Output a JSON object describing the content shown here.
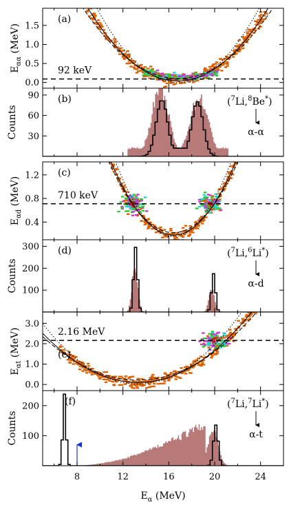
{
  "colors": {
    "hist_fill": "#a85c5c",
    "hist_line": "#000000",
    "arrow_blue": "#1a33d6",
    "scatter_orange": "#d9640b",
    "scatter_green": "#2fc92f",
    "scatter_cyan": "#2ad4c8",
    "scatter_red": "#c8171d",
    "scatter_magenta": "#c93bd0"
  },
  "x_axis": {
    "label_main": "E",
    "label_sub": "α",
    "label_unit": " (MeV)",
    "ticks": [
      "8",
      "12",
      "16",
      "20",
      "24"
    ],
    "range": [
      5,
      26
    ]
  },
  "chart_data": [
    {
      "type": "scatter",
      "panel": "(a)",
      "ylabel_main": "E",
      "ylabel_sub": "αα",
      "ylabel_unit": " (MeV)",
      "ylim": [
        -0.15,
        1.95
      ],
      "yticks": [
        "0.0",
        "0.5",
        "1.0",
        "1.5"
      ],
      "threshold": {
        "value": 0.092,
        "label": "92 keV"
      },
      "curve": {
        "vertex_x": 16.8,
        "vertex_y": 0.04,
        "coef": 0.031
      },
      "cluster": {
        "x_range": [
          13.8,
          20.2
        ],
        "y_center": 0.14
      }
    },
    {
      "type": "bar",
      "panel": "(b)",
      "ylabel": "Counts",
      "ylim": [
        0,
        100
      ],
      "yticks": [
        "30",
        "60",
        "90"
      ],
      "reaction_lead": "(",
      "reaction_sup1": "7",
      "reaction_mid": "Li,",
      "reaction_sup2": "8",
      "reaction_mid2": "Be",
      "reaction_star": "*",
      "reaction_close": ")",
      "decay": "α-α",
      "filled_peaks": [
        {
          "center": 15.2,
          "height": 98,
          "width": 0.75
        },
        {
          "center": 18.6,
          "height": 86,
          "width": 0.8
        }
      ],
      "filled_base": {
        "range": [
          12.3,
          21.2
        ],
        "height": 12
      },
      "line_peaks": [
        {
          "center": 15.3,
          "height": 83,
          "width": 0.5
        },
        {
          "center": 18.4,
          "height": 80,
          "width": 0.5
        }
      ]
    },
    {
      "type": "scatter",
      "panel": "(c)",
      "ylabel_main": "E",
      "ylabel_sub": "αd",
      "ylabel_unit": " (MeV)",
      "ylim": [
        0.1,
        1.42
      ],
      "yticks": [
        "0.4",
        "0.8",
        "1.2"
      ],
      "threshold": {
        "value": 0.71,
        "label": "710 keV"
      },
      "curve": {
        "vertex_x": 16.4,
        "vertex_y": 0.18,
        "coef": 0.042
      },
      "clusters": [
        {
          "x": 12.9,
          "y": 0.71
        },
        {
          "x": 19.6,
          "y": 0.71
        }
      ]
    },
    {
      "type": "bar",
      "panel": "(d)",
      "ylabel": "Counts",
      "ylim": [
        0,
        330
      ],
      "yticks": [
        "100",
        "200",
        "300"
      ],
      "reaction_lead": "(",
      "reaction_sup1": "7",
      "reaction_mid": "Li,",
      "reaction_sup2": "6",
      "reaction_mid2": "Li",
      "reaction_star": "*",
      "reaction_close": ")",
      "decay": "α-d",
      "filled_peaks": [
        {
          "center": 13.0,
          "height": 205,
          "width": 0.25
        },
        {
          "center": 19.7,
          "height": 100,
          "width": 0.25
        }
      ],
      "line_peaks": [
        {
          "center": 13.0,
          "height": 295,
          "width": 0.17
        },
        {
          "center": 19.8,
          "height": 175,
          "width": 0.17
        }
      ]
    },
    {
      "type": "scatter",
      "panel": "(e)",
      "ylabel_main": "E",
      "ylabel_sub": "αt",
      "ylabel_unit": " (MeV)",
      "ylim": [
        -0.3,
        3.55
      ],
      "yticks": [
        "0.0",
        "1.0",
        "2.0",
        "3.0"
      ],
      "threshold": {
        "value": 2.16,
        "label": "2.16 MeV"
      },
      "curve": {
        "vertex_x": 13.3,
        "vertex_y": 0.1,
        "coef": 0.035
      },
      "cluster": {
        "x": 20.0,
        "y": 2.16
      }
    },
    {
      "type": "bar",
      "panel": "(f)",
      "ylabel": "Counts",
      "ylim": [
        0,
        250
      ],
      "yticks": [
        "100",
        "200"
      ],
      "reaction_lead": "(",
      "reaction_sup1": "7",
      "reaction_mid": "Li,",
      "reaction_sup2": "7",
      "reaction_mid2": "Li",
      "reaction_star": "*",
      "reaction_close": ")",
      "decay": "α-t",
      "filled_peaks": [
        {
          "center": 19.8,
          "height": 118,
          "width": 0.45
        }
      ],
      "filled_ramp": {
        "range": [
          8.6,
          19.2
        ],
        "start": 2,
        "end": 140
      },
      "line_peaks": [
        {
          "center": 6.8,
          "height": 238,
          "width": 0.14
        },
        {
          "center": 20.0,
          "height": 135,
          "width": 0.2
        }
      ],
      "arrow_x": 8.0
    }
  ]
}
